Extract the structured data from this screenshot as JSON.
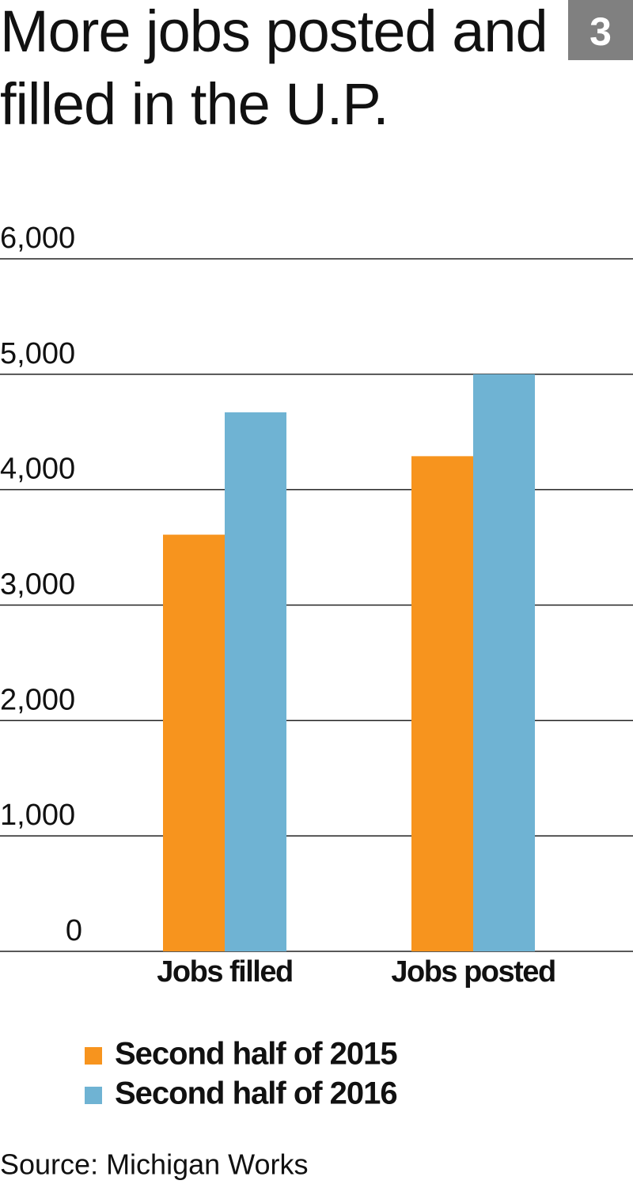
{
  "chart_data": {
    "type": "bar",
    "title": "More jobs posted and filled in the U.P.",
    "badge": "3",
    "categories": [
      "Jobs filled",
      "Jobs posted"
    ],
    "series": [
      {
        "name": "Second half of 2015",
        "color": "#f7941e",
        "values": [
          3610,
          4290
        ]
      },
      {
        "name": "Second half of 2016",
        "color": "#6fb3d3",
        "values": [
          4670,
          5000
        ]
      }
    ],
    "ylim": [
      0,
      6000
    ],
    "yticks": [
      0,
      {
        "value": 1000,
        "label": "1,000"
      },
      {
        "value": 2000,
        "label": "2,000"
      },
      {
        "value": 3000,
        "label": "3,000"
      },
      {
        "value": 4000,
        "label": "4,000"
      },
      {
        "value": 5000,
        "label": "5,000"
      },
      {
        "value": 6000,
        "label": "6,000"
      }
    ],
    "grid": true,
    "source": "Source: Michigan Works"
  }
}
